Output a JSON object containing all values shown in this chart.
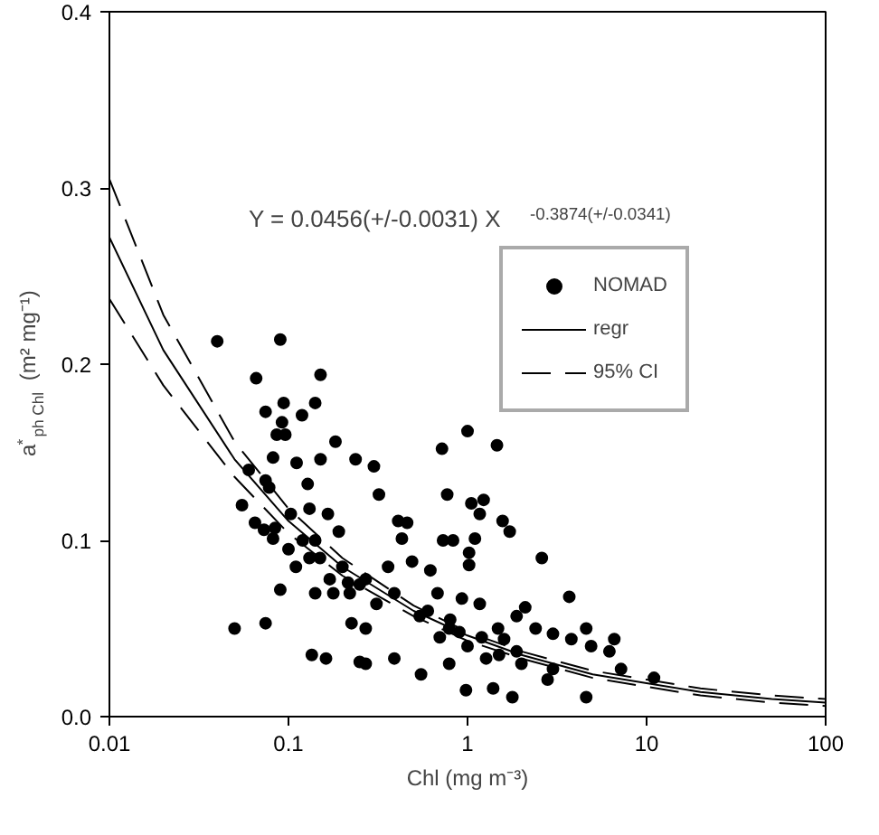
{
  "chart_data": {
    "type": "scatter",
    "xlabel": "Chl (mg m⁻³)",
    "ylabel": "a$^{*}$$_{ph Chl}$ (m² mg⁻¹)",
    "annotations": [
      "Y = 0.0456(+/-0.0031) X$^{-0.3874(+/-0.0341)}$"
    ],
    "log": "x",
    "grid": false,
    "legend": "top right",
    "xlim": [
      0.01,
      100
    ],
    "xticks": [
      0.01,
      0.1,
      1,
      10,
      100
    ],
    "ylim": [
      0,
      0.4
    ],
    "yticks": [
      {
        "value": 0,
        "label": "0.0"
      },
      0.1,
      0.2,
      0.3,
      0.4
    ],
    "series": [
      {
        "name": "NOMAD",
        "marker": "circle",
        "color": "#000000",
        "x": [
          0.04,
          0.09,
          0.066,
          0.151,
          0.0745,
          0.094,
          0.141,
          0.119,
          0.092,
          0.086,
          0.096,
          0.082,
          0.111,
          0.151,
          0.183,
          0.0745,
          0.078,
          0.128,
          0.103,
          0.131,
          0.166,
          0.073,
          0.084,
          0.082,
          0.131,
          0.141,
          0.191,
          0.09,
          0.141,
          0.178,
          0.0745,
          0.215,
          0.135,
          0.162,
          0.225,
          0.25,
          1.0,
          0.72,
          1.46,
          0.77,
          1.05,
          1.23,
          1.17,
          1.57,
          1.72,
          0.73,
          0.83,
          1.1,
          1.02,
          1.02,
          2.6,
          3.7,
          0.3,
          0.237,
          0.32,
          0.41,
          0.46,
          0.43,
          0.49,
          0.36,
          0.62,
          0.68,
          0.93,
          1.17,
          1.48,
          1.88,
          2.1,
          2.4,
          3.0,
          3.8,
          4.9,
          6.2,
          6.6,
          4.6,
          7.2,
          4.6,
          1.78,
          1.39,
          0.98,
          0.55,
          0.39,
          0.27,
          0.27,
          0.31,
          0.79,
          1.27,
          1.6,
          2.8,
          3.0,
          0.79,
          0.54,
          0.39,
          0.27,
          0.22,
          1.88,
          11,
          0.6,
          0.8,
          1.2,
          1.0,
          0.7,
          1.5,
          2.0,
          0.9,
          0.1,
          0.12,
          0.11,
          0.15,
          0.2,
          0.17,
          0.25,
          0.05,
          0.055,
          0.06,
          0.065
        ],
        "values": [
          0.213,
          0.214,
          0.192,
          0.194,
          0.173,
          0.178,
          0.178,
          0.171,
          0.167,
          0.16,
          0.16,
          0.147,
          0.144,
          0.146,
          0.156,
          0.134,
          0.13,
          0.132,
          0.115,
          0.118,
          0.115,
          0.106,
          0.107,
          0.101,
          0.09,
          0.1,
          0.105,
          0.072,
          0.07,
          0.07,
          0.053,
          0.076,
          0.035,
          0.033,
          0.053,
          0.031,
          0.162,
          0.152,
          0.154,
          0.126,
          0.121,
          0.123,
          0.115,
          0.111,
          0.105,
          0.1,
          0.1,
          0.101,
          0.093,
          0.086,
          0.09,
          0.068,
          0.142,
          0.146,
          0.126,
          0.111,
          0.11,
          0.101,
          0.088,
          0.085,
          0.083,
          0.07,
          0.067,
          0.064,
          0.05,
          0.057,
          0.062,
          0.05,
          0.047,
          0.044,
          0.04,
          0.037,
          0.044,
          0.05,
          0.027,
          0.011,
          0.011,
          0.016,
          0.015,
          0.024,
          0.033,
          0.03,
          0.05,
          0.064,
          0.03,
          0.033,
          0.044,
          0.021,
          0.027,
          0.05,
          0.057,
          0.07,
          0.078,
          0.07,
          0.037,
          0.022,
          0.06,
          0.055,
          0.045,
          0.04,
          0.045,
          0.035,
          0.03,
          0.048,
          0.095,
          0.1,
          0.085,
          0.09,
          0.085,
          0.078,
          0.075,
          0.05,
          0.12,
          0.14,
          0.11
        ]
      },
      {
        "name": "regr",
        "type": "line",
        "line_style": "solid",
        "color": "#000000",
        "x": [
          0.01,
          0.02,
          0.05,
          0.1,
          0.2,
          0.5,
          1,
          2,
          5,
          10,
          20,
          50,
          100
        ],
        "values": [
          0.272,
          0.208,
          0.146,
          0.111,
          0.085,
          0.06,
          0.046,
          0.035,
          0.024,
          0.019,
          0.014,
          0.01,
          0.008
        ]
      },
      {
        "name": "95% CI",
        "type": "line",
        "line_style": "dashed",
        "color": "#000000",
        "x": [
          0.01,
          0.02,
          0.05,
          0.1,
          0.2,
          0.5,
          1,
          2,
          5,
          10,
          20,
          50,
          100
        ],
        "values": [
          0.305,
          0.228,
          0.156,
          0.118,
          0.09,
          0.063,
          0.048,
          0.037,
          0.026,
          0.021,
          0.016,
          0.012,
          0.01
        ]
      },
      {
        "type": "line",
        "line_style": "dashed",
        "color": "#000000",
        "x": [
          0.01,
          0.02,
          0.05,
          0.1,
          0.2,
          0.5,
          1,
          2,
          5,
          10,
          20,
          50,
          100
        ],
        "values": [
          0.237,
          0.188,
          0.136,
          0.104,
          0.08,
          0.057,
          0.043,
          0.033,
          0.022,
          0.017,
          0.012,
          0.008,
          0.006
        ]
      }
    ]
  }
}
